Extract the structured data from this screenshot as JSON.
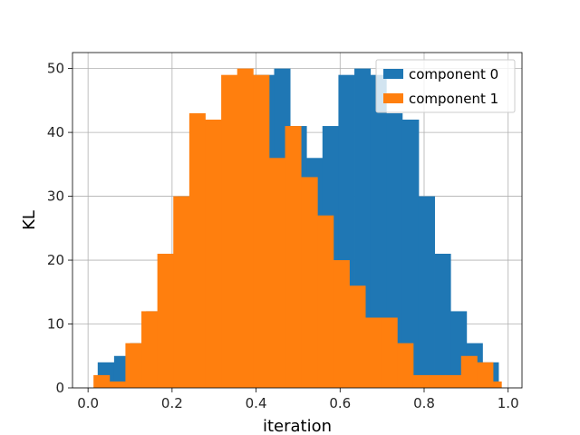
{
  "chart_data": {
    "type": "bar",
    "subtype": "overlaid-histogram",
    "title": "",
    "xlabel": "iteration",
    "ylabel": "KL",
    "xlim": [
      -0.037,
      1.033
    ],
    "ylim": [
      0,
      52.5
    ],
    "xticks": [
      0.0,
      0.2,
      0.4,
      0.6,
      0.8,
      1.0
    ],
    "xtick_labels": [
      "0.0",
      "0.2",
      "0.4",
      "0.6",
      "0.8",
      "1.0"
    ],
    "yticks": [
      0,
      10,
      20,
      30,
      40,
      50
    ],
    "ytick_labels": [
      "0",
      "10",
      "20",
      "30",
      "40",
      "50"
    ],
    "grid": true,
    "legend_position": "top-right",
    "series": [
      {
        "name": "component 0",
        "color": "#1f77b4",
        "bin_edges": [
          0.023,
          0.062,
          0.1,
          0.138,
          0.176,
          0.214,
          0.253,
          0.291,
          0.329,
          0.367,
          0.405,
          0.443,
          0.481,
          0.52,
          0.558,
          0.596,
          0.634,
          0.672,
          0.71,
          0.748,
          0.787,
          0.825,
          0.863,
          0.901,
          0.939,
          0.977
        ],
        "values": [
          4,
          5,
          7,
          12,
          21,
          30,
          30,
          36,
          41,
          49,
          49,
          50,
          41,
          36,
          41,
          49,
          50,
          49,
          43,
          42,
          30,
          21,
          12,
          7,
          4
        ]
      },
      {
        "name": "component 1",
        "color": "#ff7f0e",
        "bin_edges": [
          0.013,
          0.051,
          0.089,
          0.127,
          0.165,
          0.203,
          0.241,
          0.279,
          0.317,
          0.355,
          0.393,
          0.431,
          0.469,
          0.507,
          0.546,
          0.584,
          0.622,
          0.66,
          0.698,
          0.736,
          0.774,
          0.812,
          0.85,
          0.888,
          0.926,
          0.964,
          0.984
        ],
        "values": [
          2,
          1,
          7,
          12,
          21,
          30,
          43,
          42,
          49,
          50,
          49,
          36,
          41,
          33,
          27,
          20,
          16,
          11,
          11,
          7,
          2,
          2,
          2,
          5,
          4,
          1
        ]
      }
    ]
  }
}
